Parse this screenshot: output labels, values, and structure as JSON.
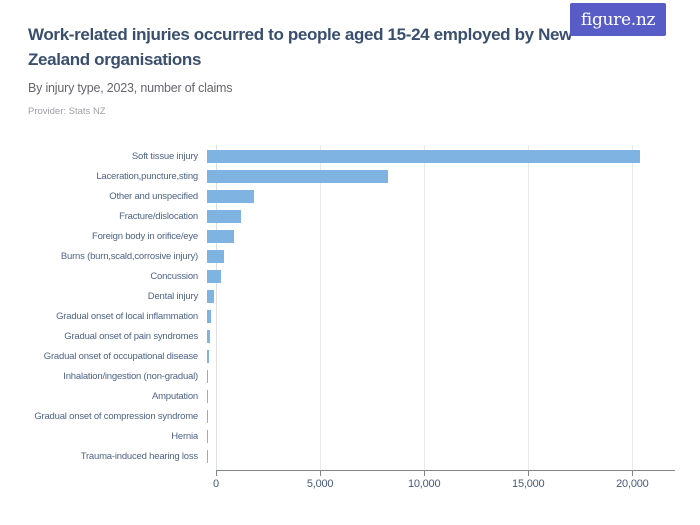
{
  "header": {
    "title": "Work-related injuries occurred to people aged 15-24 employed by New Zealand organisations",
    "subtitle": "By injury type, 2023, number of claims",
    "provider_label": "Provider: Stats NZ",
    "logo_text": "figure.nz"
  },
  "colors": {
    "bar": "#7FB3E2",
    "title_text": "#3A4F6E",
    "category_label_text": "#4E6386",
    "tick_label_text": "#475B7D",
    "logo_background": "#575CC7",
    "logo_text": "#FFFFFF",
    "gridline": "#EAEAEE",
    "axis_line": "#84848E"
  },
  "chart_data": {
    "type": "bar",
    "orientation": "horizontal",
    "title": "Work-related injuries occurred to people aged 15-24 employed by New Zealand organisations",
    "subtitle": "By injury type, 2023, number of claims",
    "xlabel": "",
    "ylabel": "",
    "categories": [
      "Soft tissue injury",
      "Laceration,puncture,sting",
      "Other and unspecified",
      "Fracture/dislocation",
      "Foreign body in orifice/eye",
      "Burns (burn,scald,corrosive injury)",
      "Concussion",
      "Dental injury",
      "Gradual onset of local inflammation",
      "Gradual onset of pain syndromes",
      "Gradual onset of occupational disease",
      "Inhalation/ingestion (non-gradual)",
      "Amputation",
      "Gradual onset of compression syndrome",
      "Hernia",
      "Trauma-induced hearing loss"
    ],
    "values": [
      20800,
      8700,
      2250,
      1620,
      1290,
      820,
      650,
      340,
      170,
      165,
      90,
      70,
      55,
      40,
      25,
      15
    ],
    "xlim": [
      0,
      22000
    ],
    "xticks": [
      0,
      5000,
      10000,
      15000,
      20000
    ],
    "xtick_labels": [
      "0",
      "5,000",
      "10,000",
      "15,000",
      "20,000"
    ],
    "grid": true,
    "legend": false
  }
}
